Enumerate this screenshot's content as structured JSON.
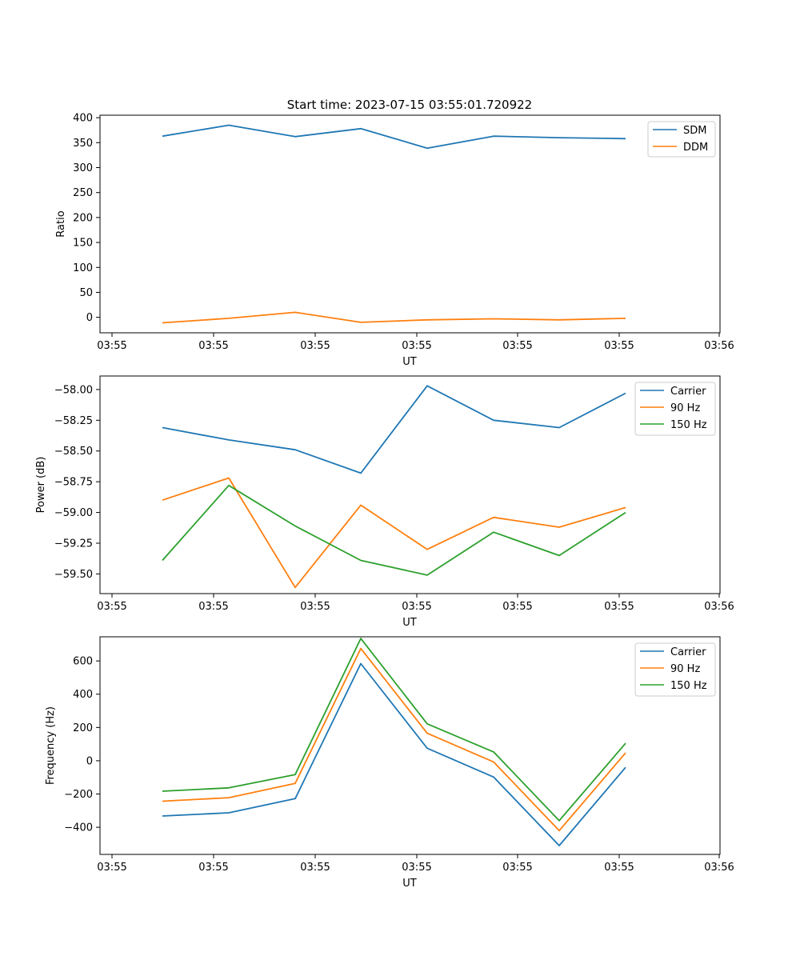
{
  "figure": {
    "title": "Start time: 2023-07-15 03:55:01.720922"
  },
  "chart_data": [
    {
      "type": "line",
      "title": "Start time: 2023-07-15 03:55:01.720922",
      "xlabel": "UT",
      "ylabel": "Ratio",
      "x_tick_labels": [
        "03:55",
        "03:55",
        "03:55",
        "03:55",
        "03:55",
        "03:55",
        "03:56"
      ],
      "y_ticks": [
        0,
        50,
        100,
        150,
        200,
        250,
        300,
        350,
        400
      ],
      "y_tick_labels": [
        "0",
        "50",
        "100",
        "150",
        "200",
        "250",
        "300",
        "350",
        "400"
      ],
      "ylim": [
        -31,
        405
      ],
      "legend_position": "top-right",
      "series": [
        {
          "name": "SDM",
          "color": "#1f77b4",
          "values": [
            363,
            385,
            362,
            378,
            339,
            363,
            360,
            358
          ]
        },
        {
          "name": "DDM",
          "color": "#ff7f0e",
          "values": [
            -11,
            -2,
            10,
            -10,
            -5,
            -3,
            -5,
            -2
          ]
        }
      ]
    },
    {
      "type": "line",
      "title": "",
      "xlabel": "UT",
      "ylabel": "Power (dB)",
      "x_tick_labels": [
        "03:55",
        "03:55",
        "03:55",
        "03:55",
        "03:55",
        "03:55",
        "03:56"
      ],
      "y_ticks": [
        -59.5,
        -59.25,
        -59.0,
        -58.75,
        -58.5,
        -58.25,
        -58.0
      ],
      "y_tick_labels": [
        "−59.50",
        "−59.25",
        "−59.00",
        "−58.75",
        "−58.50",
        "−58.25",
        "−58.00"
      ],
      "ylim": [
        -59.66,
        -57.89
      ],
      "legend_position": "top-right",
      "series": [
        {
          "name": "Carrier",
          "color": "#1f77b4",
          "values": [
            -58.31,
            -58.41,
            -58.49,
            -58.68,
            -57.97,
            -58.25,
            -58.31,
            -58.03
          ]
        },
        {
          "name": "90 Hz",
          "color": "#ff7f0e",
          "values": [
            -58.9,
            -58.72,
            -59.61,
            -58.94,
            -59.3,
            -59.04,
            -59.12,
            -58.96
          ]
        },
        {
          "name": "150 Hz",
          "color": "#2ca02c",
          "values": [
            -59.39,
            -58.78,
            -59.11,
            -59.39,
            -59.51,
            -59.16,
            -59.35,
            -59.0
          ]
        }
      ]
    },
    {
      "type": "line",
      "title": "",
      "xlabel": "UT",
      "ylabel": "Frequency (Hz)",
      "x_tick_labels": [
        "03:55",
        "03:55",
        "03:55",
        "03:55",
        "03:55",
        "03:55",
        "03:56"
      ],
      "y_ticks": [
        -400,
        -200,
        0,
        200,
        400,
        600
      ],
      "y_tick_labels": [
        "−400",
        "−200",
        "0",
        "200",
        "400",
        "600"
      ],
      "ylim": [
        -563,
        745
      ],
      "legend_position": "top-right",
      "series": [
        {
          "name": "Carrier",
          "color": "#1f77b4",
          "values": [
            -332,
            -313,
            -228,
            584,
            75,
            -98,
            -510,
            -40
          ]
        },
        {
          "name": "90 Hz",
          "color": "#ff7f0e",
          "values": [
            -243,
            -222,
            -136,
            675,
            165,
            -7,
            -420,
            47
          ]
        },
        {
          "name": "150 Hz",
          "color": "#2ca02c",
          "values": [
            -183,
            -163,
            -83,
            735,
            222,
            53,
            -360,
            105
          ]
        }
      ]
    }
  ]
}
